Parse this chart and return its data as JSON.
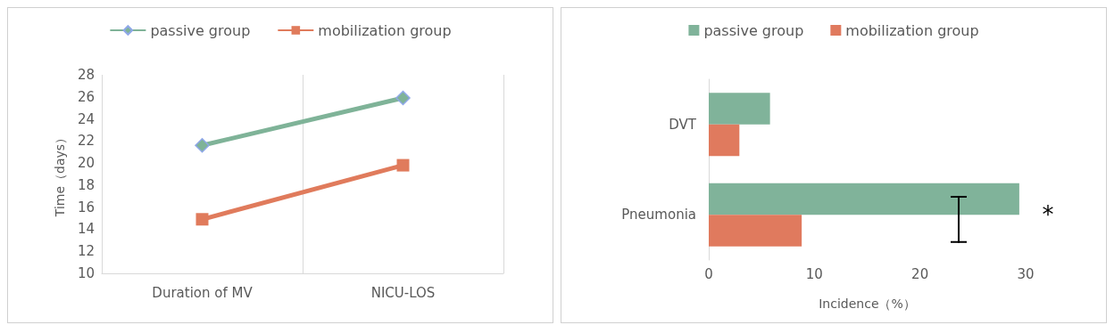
{
  "chart_data": [
    {
      "type": "line",
      "categories": [
        "Duration of MV",
        "NICU-LOS"
      ],
      "ylabel": "Time（days）",
      "ylim": [
        10,
        28
      ],
      "yticks": [
        10,
        12,
        14,
        16,
        18,
        20,
        22,
        24,
        26,
        28
      ],
      "grid": "x",
      "legend": "top",
      "series": [
        {
          "name": "passive group",
          "color": "#7fb398",
          "marker": "diamond",
          "values": [
            21.6,
            25.9
          ]
        },
        {
          "name": "mobilization group",
          "color": "#e07b5c",
          "marker": "square",
          "values": [
            14.9,
            19.8
          ]
        }
      ]
    },
    {
      "type": "bar",
      "orientation": "horizontal",
      "categories": [
        "DVT",
        "Pneumonia"
      ],
      "xlabel": "Incidence（%）",
      "xlim": [
        0,
        30
      ],
      "xticks": [
        0,
        10,
        20,
        30
      ],
      "grid": false,
      "legend": "top",
      "series": [
        {
          "name": "passive group",
          "color": "#80b39a",
          "values": [
            5.8,
            29.4
          ]
        },
        {
          "name": "mobilization group",
          "color": "#e07a5e",
          "values": [
            2.9,
            8.8
          ]
        }
      ],
      "annotations": [
        "*"
      ]
    }
  ]
}
